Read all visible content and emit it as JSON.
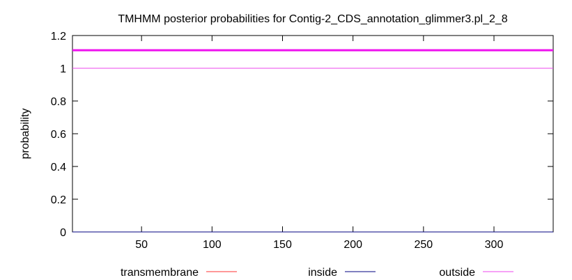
{
  "chart_data": {
    "type": "line",
    "title": "TMHMM posterior probabilities for Contig-2_CDS_annotation_glimmer3.pl_2_8",
    "xlabel": "",
    "ylabel": "probability",
    "xlim": [
      1,
      342
    ],
    "ylim": [
      0,
      1.2
    ],
    "x_ticks": [
      50,
      100,
      150,
      200,
      250,
      300
    ],
    "y_ticks": [
      0,
      0.2,
      0.4,
      0.6,
      0.8,
      1,
      1.2
    ],
    "x_tick_labels": [
      "50",
      "100",
      "150",
      "200",
      "250",
      "300"
    ],
    "y_tick_labels": [
      "0",
      "0.2",
      "0.4",
      "0.6",
      "0.8",
      "1",
      "1.2"
    ],
    "grid": false,
    "legend_position": "bottom",
    "series": [
      {
        "name": "transmembrane",
        "color": "#ff3333",
        "x": [
          1,
          342
        ],
        "y": [
          0,
          0
        ]
      },
      {
        "name": "inside",
        "color": "#000080",
        "x": [
          1,
          342
        ],
        "y": [
          0,
          0
        ]
      },
      {
        "name": "outside",
        "color": "#ee44ee",
        "x": [
          1,
          342
        ],
        "y": [
          1,
          1
        ]
      }
    ],
    "annotations": [
      {
        "type": "topology_bar",
        "label": "outside",
        "color": "#ee11ee",
        "x_start": 1,
        "x_end": 342,
        "y": 1.11
      }
    ]
  }
}
